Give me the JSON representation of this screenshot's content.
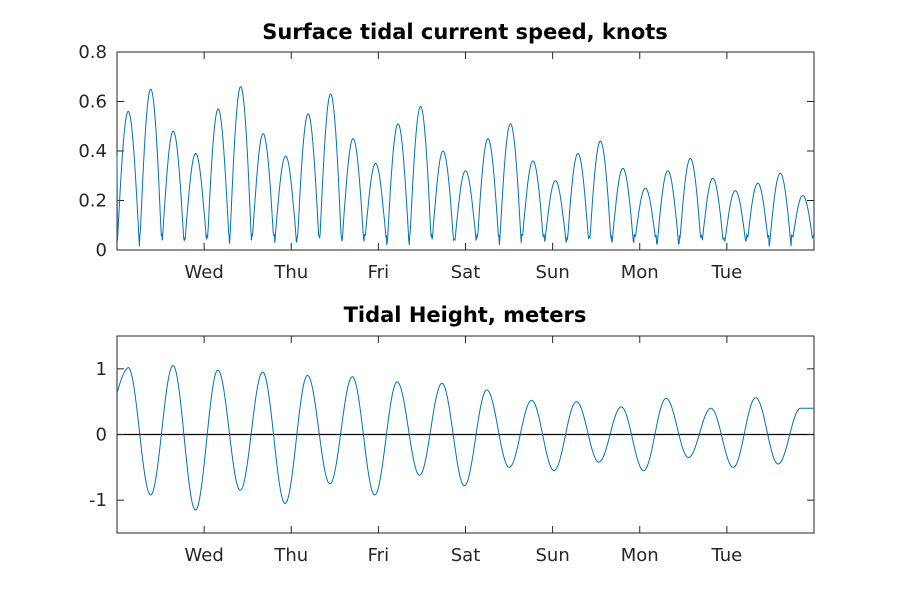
{
  "chart_data": [
    {
      "type": "line",
      "title": "Surface tidal current speed, knots",
      "xlabel": "",
      "ylabel": "",
      "x_range_days": [
        0,
        8
      ],
      "xtick_labels": [
        "Wed",
        "Thu",
        "Fri",
        "Sat",
        "Sun",
        "Mon",
        "Tue"
      ],
      "xtick_days": [
        1,
        2,
        3,
        4,
        5,
        6,
        7
      ],
      "ylim": [
        0,
        0.8
      ],
      "yticks": [
        0,
        0.2,
        0.4,
        0.6,
        0.8
      ],
      "ytick_labels": [
        "0",
        "0.2",
        "0.4",
        "0.6",
        "0.8"
      ],
      "grid": false,
      "color": "#0072bd",
      "peak_values": [
        0.56,
        0.65,
        0.48,
        0.39,
        0.57,
        0.66,
        0.47,
        0.38,
        0.55,
        0.63,
        0.45,
        0.35,
        0.51,
        0.58,
        0.4,
        0.32,
        0.45,
        0.51,
        0.36,
        0.28,
        0.39,
        0.44,
        0.33,
        0.25,
        0.32,
        0.37,
        0.29,
        0.24,
        0.27,
        0.31,
        0.22
      ],
      "start_value": 0.38
    },
    {
      "type": "line",
      "title": "Tidal Height, meters",
      "xlabel": "",
      "ylabel": "",
      "x_range_days": [
        0,
        8
      ],
      "xtick_labels": [
        "Wed",
        "Thu",
        "Fri",
        "Sat",
        "Sun",
        "Mon",
        "Tue"
      ],
      "xtick_days": [
        1,
        2,
        3,
        4,
        5,
        6,
        7
      ],
      "ylim": [
        -1.5,
        1.5
      ],
      "yticks": [
        -1,
        0,
        1
      ],
      "ytick_labels": [
        "-1",
        "0",
        "1"
      ],
      "grid": false,
      "zero_line": true,
      "color": "#0072bd",
      "extrema_values": [
        1.02,
        -0.92,
        1.05,
        -1.15,
        0.98,
        -0.85,
        0.95,
        -1.05,
        0.9,
        -0.75,
        0.88,
        -0.92,
        0.8,
        -0.62,
        0.78,
        -0.78,
        0.68,
        -0.5,
        0.52,
        -0.55,
        0.5,
        -0.42,
        0.42,
        -0.55,
        0.55,
        -0.35,
        0.4,
        -0.5,
        0.56,
        -0.45,
        0.4
      ]
    }
  ]
}
